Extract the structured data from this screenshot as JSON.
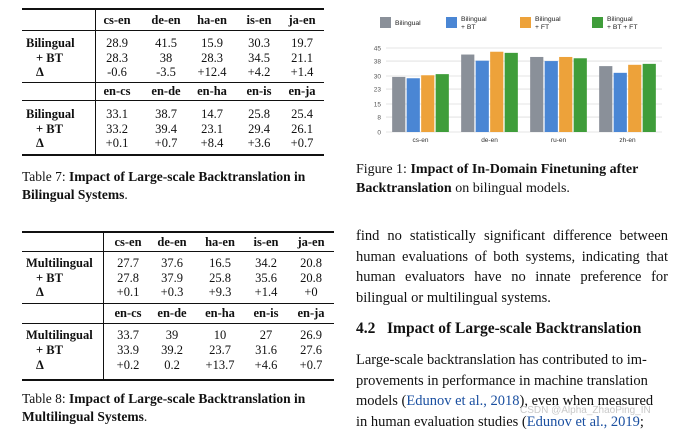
{
  "table7": {
    "caption_label": "Table 7:",
    "caption_bold": "Impact of Large-scale Backtranslation in Bilingual Systems",
    "caption_tail": ".",
    "block1": {
      "headers": [
        "cs-en",
        "de-en",
        "ha-en",
        "is-en",
        "ja-en"
      ],
      "row_labels": [
        "Bilingual",
        "+ BT",
        "Δ"
      ],
      "rows": [
        [
          "28.9",
          "41.5",
          "15.9",
          "30.3",
          "19.7"
        ],
        [
          "28.3",
          "38",
          "28.3",
          "34.5",
          "21.1"
        ],
        [
          "-0.6",
          "-3.5",
          "+12.4",
          "+4.2",
          "+1.4"
        ]
      ]
    },
    "block2": {
      "headers": [
        "en-cs",
        "en-de",
        "en-ha",
        "en-is",
        "en-ja"
      ],
      "row_labels": [
        "Bilingual",
        "+ BT",
        "Δ"
      ],
      "rows": [
        [
          "33.1",
          "38.7",
          "14.7",
          "25.8",
          "25.4"
        ],
        [
          "33.2",
          "39.4",
          "23.1",
          "29.4",
          "26.1"
        ],
        [
          "+0.1",
          "+0.7",
          "+8.4",
          "+3.6",
          "+0.7"
        ]
      ]
    }
  },
  "table8": {
    "caption_label": "Table 8:",
    "caption_bold": "Impact of Large-scale Backtranslation in Multilingual Systems",
    "caption_tail": ".",
    "block1": {
      "headers": [
        "cs-en",
        "de-en",
        "ha-en",
        "is-en",
        "ja-en"
      ],
      "row_labels": [
        "Multilingual",
        "+ BT",
        "Δ"
      ],
      "rows": [
        [
          "27.7",
          "37.6",
          "16.5",
          "34.2",
          "20.8"
        ],
        [
          "27.8",
          "37.9",
          "25.8",
          "35.6",
          "20.8"
        ],
        [
          "+0.1",
          "+0.3",
          "+9.3",
          "+1.4",
          "+0"
        ]
      ]
    },
    "block2": {
      "headers": [
        "en-cs",
        "en-de",
        "en-ha",
        "en-is",
        "en-ja"
      ],
      "row_labels": [
        "Multilingual",
        "+ BT",
        "Δ"
      ],
      "rows": [
        [
          "33.7",
          "39",
          "10",
          "27",
          "26.9"
        ],
        [
          "33.9",
          "39.2",
          "23.7",
          "31.6",
          "27.6"
        ],
        [
          "+0.2",
          "0.2",
          "+13.7",
          "+4.6",
          "+0.7"
        ]
      ]
    }
  },
  "figure1": {
    "caption_label": "Figure 1:",
    "caption_bold": "Impact of In-Domain Finetuning after Backtranslation",
    "caption_tail": " on bilingual models."
  },
  "chart_data": {
    "type": "bar",
    "title": "",
    "xlabel": "",
    "ylabel": "",
    "categories": [
      "cs-en",
      "de-en",
      "ru-en",
      "zh-en"
    ],
    "ylim": [
      0,
      45
    ],
    "yticks": [
      0,
      8,
      15,
      23,
      30,
      38,
      45
    ],
    "grid": true,
    "legend_position": "top",
    "series": [
      {
        "name": "Bilingual",
        "legend_lines": [
          "Bilingual"
        ],
        "color": "#8a9099",
        "values": [
          29.5,
          41.5,
          40.2,
          35.3
        ]
      },
      {
        "name": "Bilingual + BT",
        "legend_lines": [
          "Bilingual",
          "+ BT"
        ],
        "color": "#4a86d4",
        "values": [
          28.8,
          38.2,
          38.0,
          31.7
        ]
      },
      {
        "name": "Bilingual + FT",
        "legend_lines": [
          "Bilingual",
          "+ FT"
        ],
        "color": "#eda23a",
        "values": [
          30.4,
          43.0,
          40.2,
          36.0
        ]
      },
      {
        "name": "Bilingual + BT + FT",
        "legend_lines": [
          "Bilingual",
          "+ BT + FT"
        ],
        "color": "#3f9d3a",
        "values": [
          31.0,
          42.4,
          39.5,
          36.5
        ]
      }
    ]
  },
  "text": {
    "para1": "find no statistically significant difference between human evaluations of both systems, indicating that human evaluators have no innate preference for bilingual or multilingual systems.",
    "section_number": "4.2",
    "section_title": "Impact of Large-scale Backtranslation",
    "p2_a": "Large-scale backtranslation has contributed to im-",
    "p2_b": "provements in performance in machine translation",
    "p2_c_pre": "models (",
    "cite1": "Edunov et al., 2018",
    "p2_c_post": "), even when measured",
    "p2_d_pre": "in human evaluation studies (",
    "cite2": "Edunov et al., 2019",
    "p2_d_post": ";"
  },
  "watermark": "CSDN @Alpha_ZhaoPing_IN"
}
